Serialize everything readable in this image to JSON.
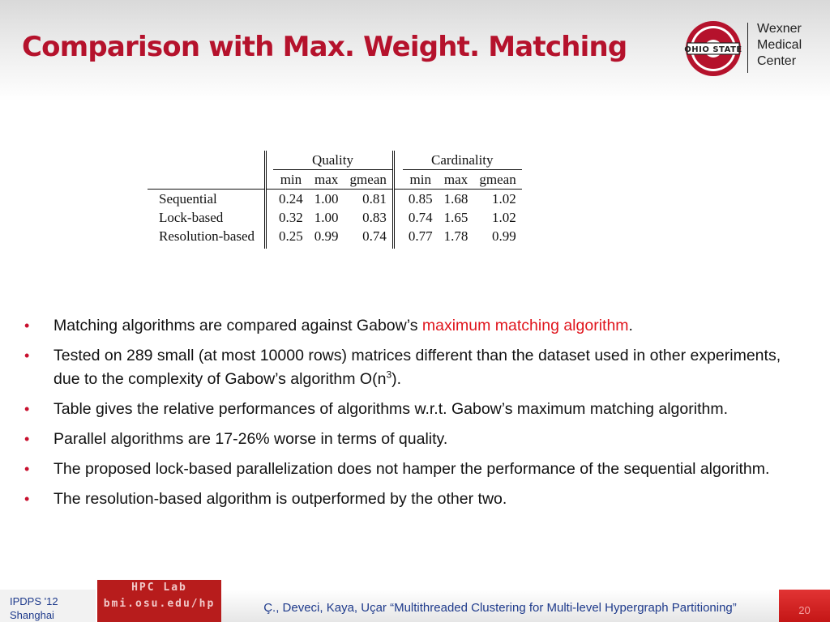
{
  "slide": {
    "title": "Comparison with Max. Weight. Matching"
  },
  "logo": {
    "emblem_icon": "ohio-state-block-o-icon",
    "emblem_text": "OHIO STATE",
    "line1": "Wexner",
    "line2": "Medical",
    "line3": "Center"
  },
  "table": {
    "group_quality": "Quality",
    "group_cardinality": "Cardinality",
    "col_min": "min",
    "col_max": "max",
    "col_gmean": "gmean",
    "rows": [
      {
        "label": "Sequential",
        "values": [
          "0.24",
          "1.00",
          "0.81",
          "0.85",
          "1.68",
          "1.02"
        ]
      },
      {
        "label": "Lock-based",
        "values": [
          "0.32",
          "1.00",
          "0.83",
          "0.74",
          "1.65",
          "1.02"
        ]
      },
      {
        "label": "Resolution-based",
        "values": [
          "0.25",
          "0.99",
          "0.74",
          "0.77",
          "1.78",
          "0.99"
        ]
      }
    ]
  },
  "bullets": {
    "b1_pre": "Matching algorithms are compared against Gabow’s ",
    "b1_highlight": "maximum matching algorithm",
    "b1_post": ".",
    "b2_pre": "Tested on 289 small (at most 10000 rows) matrices different than the dataset used in other experiments, due to the complexity of Gabow’s algorithm O(n",
    "b2_sup": "3",
    "b2_post": ").",
    "b3": "Table gives the relative performances of algorithms w.r.t. Gabow’s maximum matching algorithm.",
    "b4": "Parallel algorithms are 17-26% worse in terms of quality.",
    "b5": "The proposed lock-based parallelization does not hamper the performance of the sequential algorithm.",
    "b6": "The resolution-based algorithm is outperformed by the other two."
  },
  "footer": {
    "conf_line1": "IPDPS '12",
    "conf_line2": "Shanghai",
    "lab_line1": "HPC Lab",
    "lab_line2": "bmi.osu.edu/hp",
    "citation": "Ç., Deveci, Kaya, Uçar “Multithreaded Clustering for Multi-level Hypergraph Partitioning”",
    "page": "20"
  },
  "colors": {
    "accent": "#b5122c",
    "highlight": "#e0151d",
    "footer_text": "#1f3b8c"
  }
}
